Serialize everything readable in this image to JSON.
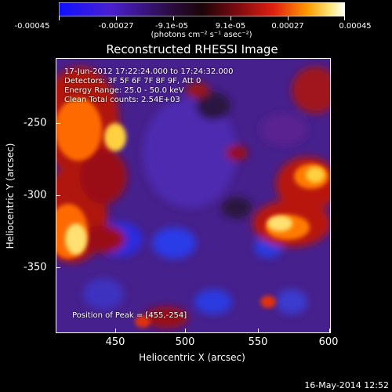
{
  "colorbar": {
    "ticks": [
      "-0.00045",
      "-0.00027",
      "-9.1e-05",
      "9.1e-05",
      "0.00027",
      "0.00045"
    ],
    "units": "(photons cm⁻² s⁻¹ asec⁻²)",
    "colors": [
      "#1010ff",
      "#4a20d0",
      "#2a0b3a",
      "#3a0a12",
      "#d01010",
      "#ff8a00",
      "#ffe060",
      "#ffffff"
    ]
  },
  "plot": {
    "title": "Reconstructed RHESSI Image",
    "xlabel": "Heliocentric X (arcsec)",
    "ylabel": "Heliocentric Y (arcsec)",
    "xticks": [
      "450",
      "500",
      "550",
      "600"
    ],
    "yticks": [
      "-250",
      "-300",
      "-350"
    ],
    "annotations": {
      "time_range": "17-Jun-2012 17:22:24.000 to 17:24:32.000",
      "detectors": "Detectors: 3F 5F 6F 7F 8F 9F, Att 0",
      "energy": "Energy Range: 25.0 - 50.0 keV",
      "clean": "Clean    Total counts: 2.54E+03",
      "peak": "Position of Peak = [455,-254]"
    }
  },
  "footer": {
    "date": "16-May-2014 12:52"
  },
  "chart_data": {
    "type": "heatmap",
    "title": "Reconstructed RHESSI Image",
    "xlabel": "Heliocentric X (arcsec)",
    "ylabel": "Heliocentric Y (arcsec)",
    "xlim": [
      412,
      602
    ],
    "ylim": [
      -396,
      -212
    ],
    "colorbar_range": [
      -0.00045,
      0.00045
    ],
    "peak": [
      455,
      -254
    ]
  }
}
